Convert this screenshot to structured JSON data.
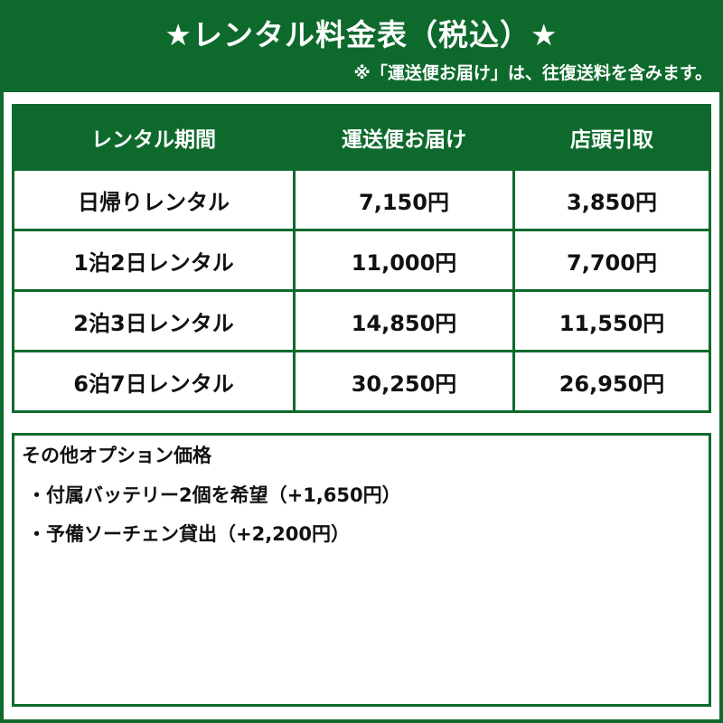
{
  "title": "★レンタル料金表（税込）★",
  "note": "※「運送便お届け」は、往復送料を含みます。",
  "colors": {
    "green": "#0d6a2c",
    "white": "#ffffff",
    "text": "#111111"
  },
  "table": {
    "headers": [
      "レンタル期間",
      "運送便お届け",
      "店頭引取"
    ],
    "rows": [
      [
        "日帰りレンタル",
        "7,150円",
        "3,850円"
      ],
      [
        "1泊2日レンタル",
        "11,000円",
        "7,700円"
      ],
      [
        "2泊3日レンタル",
        "14,850円",
        "11,550円"
      ],
      [
        "6泊7日レンタル",
        "30,250円",
        "26,950円"
      ]
    ]
  },
  "options": {
    "heading": "その他オプション価格",
    "items": [
      "・付属バッテリー2個を希望（+1,650円）",
      "・予備ソーチェン貸出（+2,200円）"
    ]
  }
}
